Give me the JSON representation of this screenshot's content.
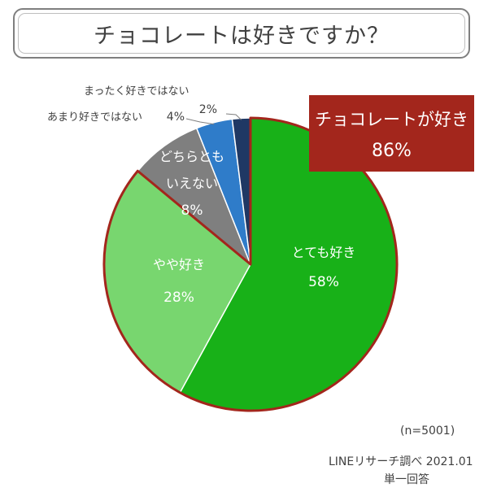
{
  "title": "チョコレートは好きですか？",
  "chart_data": {
    "type": "pie",
    "slices": [
      {
        "label": [
          "とても好き"
        ],
        "value": 58,
        "display": "58%",
        "color": "#18b118"
      },
      {
        "label": [
          "やや好き"
        ],
        "value": 28,
        "display": "28%",
        "color": "#78d66f"
      },
      {
        "label": [
          "どちらとも",
          "いえない"
        ],
        "value": 8,
        "display": "8%",
        "color": "#7f7f7f"
      },
      {
        "label": [
          "あまり好きではない"
        ],
        "value": 4,
        "display": "4%",
        "color": "#2f7cc9"
      },
      {
        "label": [
          "まったく好きではない"
        ],
        "value": 2,
        "display": "2%",
        "color": "#1f3864"
      }
    ],
    "highlight_color": "#a3261c",
    "summary": {
      "label": "チョコレートが好き",
      "value": "86%"
    }
  },
  "footer": {
    "sample": "(n=5001)",
    "source": "LINEリサーチ調べ 2021.01",
    "note": "単一回答"
  }
}
